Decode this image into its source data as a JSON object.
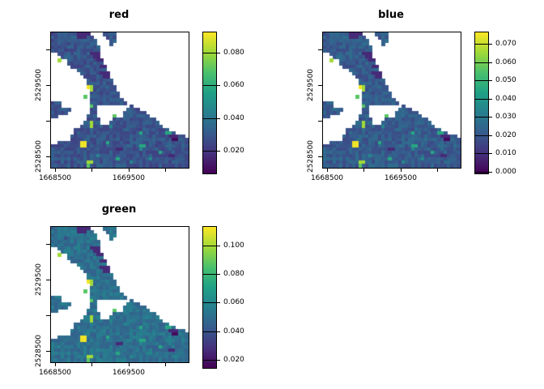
{
  "chart_data": {
    "type": "heatmap",
    "description": "Three raster map panels (R terra-style plot) of the same coastal region shown for layers red, blue and green, each with a viridis colour legend",
    "colormap": "viridis",
    "viridis_stops": [
      "#440154",
      "#46327e",
      "#365c8d",
      "#277f8e",
      "#1fa187",
      "#4ac16d",
      "#a0da39",
      "#fde725"
    ],
    "panels": [
      {
        "title": "red",
        "vmin": 0.006,
        "vmax": 0.0925,
        "base_shift": 0,
        "colorbar_ticks": [
          {
            "value": 0.02,
            "label": "0.020"
          },
          {
            "value": 0.04,
            "label": "0.040"
          },
          {
            "value": 0.06,
            "label": "0.060"
          },
          {
            "value": 0.08,
            "label": "0.080"
          }
        ]
      },
      {
        "title": "blue",
        "vmin": -0.001,
        "vmax": 0.0762,
        "base_shift": 0.03,
        "colorbar_ticks": [
          {
            "value": 0.0,
            "label": "0.000"
          },
          {
            "value": 0.01,
            "label": "0.010"
          },
          {
            "value": 0.02,
            "label": "0.020"
          },
          {
            "value": 0.03,
            "label": "0.030"
          },
          {
            "value": 0.04,
            "label": "0.040"
          },
          {
            "value": 0.05,
            "label": "0.050"
          },
          {
            "value": 0.06,
            "label": "0.060"
          },
          {
            "value": 0.07,
            "label": "0.070"
          }
        ]
      },
      {
        "title": "green",
        "vmin": 0.0143,
        "vmax": 0.113,
        "base_shift": 0.11,
        "colorbar_ticks": [
          {
            "value": 0.02,
            "label": "0.020"
          },
          {
            "value": 0.04,
            "label": "0.040"
          },
          {
            "value": 0.06,
            "label": "0.060"
          },
          {
            "value": 0.08,
            "label": "0.080"
          },
          {
            "value": 0.1,
            "label": "0.100"
          }
        ]
      }
    ],
    "axes": {
      "xlim": [
        1668445,
        1670315
      ],
      "ylim": [
        2528341,
        2530239
      ],
      "x_ticks": [
        {
          "value": 1668500,
          "label": "1668500"
        },
        {
          "value": 1669000,
          "label": ""
        },
        {
          "value": 1669500,
          "label": "1669500"
        },
        {
          "value": 1670000,
          "label": ""
        }
      ],
      "y_ticks": [
        {
          "value": 2530000,
          "label": ""
        },
        {
          "value": 2529500,
          "label": "2529500"
        },
        {
          "value": 2529000,
          "label": ""
        },
        {
          "value": 2528500,
          "label": "2528500"
        }
      ]
    },
    "raster": {
      "cols": 42,
      "rows": 41,
      "cell_legend": {
        ".": "no data (white water)",
        "#": "base land value (dark blue)",
        "1-9": "value level from lowest (dark purple) to highest (yellow)"
      },
      "grid": [
        "########2222....####......................",
        "########222##....###......................",
        "##########4###....##......................",
        "####3#########....#.......................",
        "#####4########4...........................",
        "###############...........................",
        "..##########222...........................",
        "...##########22...........................",
        "..8..#########22..........................",
        ".....###########..........................",
        "......#########22.........................",
        "........#########.........................",
        ".........######222........................",
        "..........######22........................",
        "...........########.......................",
        "...........#####4##.......................",
        "...........98#######......................",
        "............8#######......................",
        "............#########.....................",
        "..........7.#########.....................",
        "............##########....................",
        "###.........###########...................",
        "###.........7#..........#.................",
        "######......##.........####...............",
        "#####.......##........#######.............",
        "##.........###.....7..#####4##............",
        "...........####....#############..........",
        "..........##8##...###############.........",
        ".........###8#####5###############........",
        ".......#############################......",
        ".......####################6#######66#....",
        "......##############################222##.",
        "......###############################11###",
        "..#######99######6########################",
        "#########99################66#############",
        "####################22#####5##############",
        "#################################6########",
        "##############5#####################22####",
        "####################6#########5###########",
        "###########88###########5#################",
        "###########7##############################"
      ]
    }
  }
}
